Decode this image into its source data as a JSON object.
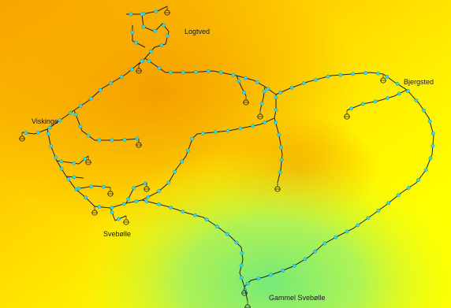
{
  "map": {
    "background": {
      "colors": [
        "#f7a300",
        "#ffd100",
        "#fff200",
        "#ffff00",
        "#9cf16a",
        "#6de87e"
      ]
    },
    "network": {
      "line_color": "#222222",
      "node_color": "#36d7e6",
      "marker": "station-symbol"
    },
    "towns": [
      {
        "label": "Logtved"
      },
      {
        "label": "Bjergsted"
      },
      {
        "label": "Viskinge"
      },
      {
        "label": "Svebølle"
      },
      {
        "label": "Gammel Svebølle"
      }
    ]
  }
}
